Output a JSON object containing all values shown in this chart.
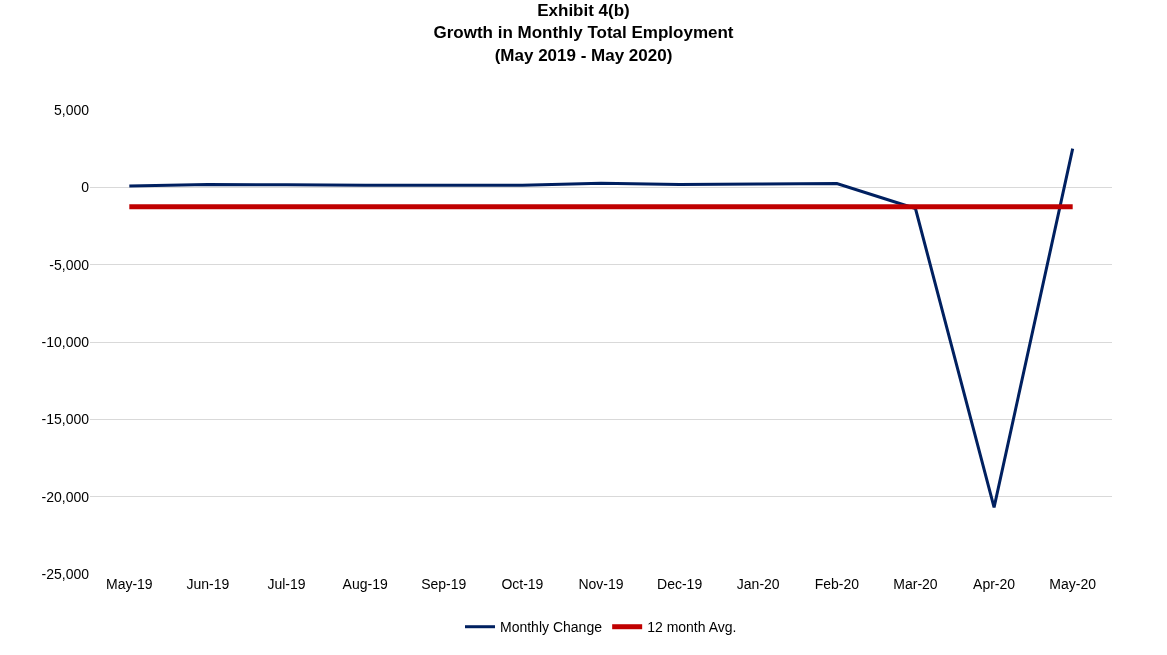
{
  "chart_data": {
    "type": "line",
    "title": "Exhibit 4(b)\nGrowth in Monthly Total Employment\n(May 2019 - May 2020)",
    "categories": [
      "May-19",
      "Jun-19",
      "Jul-19",
      "Aug-19",
      "Sep-19",
      "Oct-19",
      "Nov-19",
      "Dec-19",
      "Jan-20",
      "Feb-20",
      "Mar-20",
      "Apr-20",
      "May-20"
    ],
    "series": [
      {
        "name": "Monthly Change",
        "color": "#002060",
        "values": [
          85,
          180,
          160,
          130,
          140,
          130,
          260,
          180,
          210,
          250,
          -1370,
          -20690,
          2500
        ]
      },
      {
        "name": "12 month Avg.",
        "color": "#c00000",
        "values": [
          -1250,
          -1250,
          -1250,
          -1250,
          -1250,
          -1250,
          -1250,
          -1250,
          -1250,
          -1250,
          -1250,
          -1250,
          -1250
        ]
      }
    ],
    "ylim": [
      -25000,
      5000
    ],
    "yticks": [
      {
        "value": -25000,
        "label": "-25,000"
      },
      {
        "value": -20000,
        "label": "-20,000"
      },
      {
        "value": -15000,
        "label": "-15,000"
      },
      {
        "value": -10000,
        "label": "-10,000"
      },
      {
        "value": -5000,
        "label": "-5,000"
      },
      0,
      {
        "value": 5000,
        "label": "5,000"
      }
    ],
    "grid": "y",
    "legend": "bottom",
    "marker": "none",
    "line_style": "solid"
  }
}
